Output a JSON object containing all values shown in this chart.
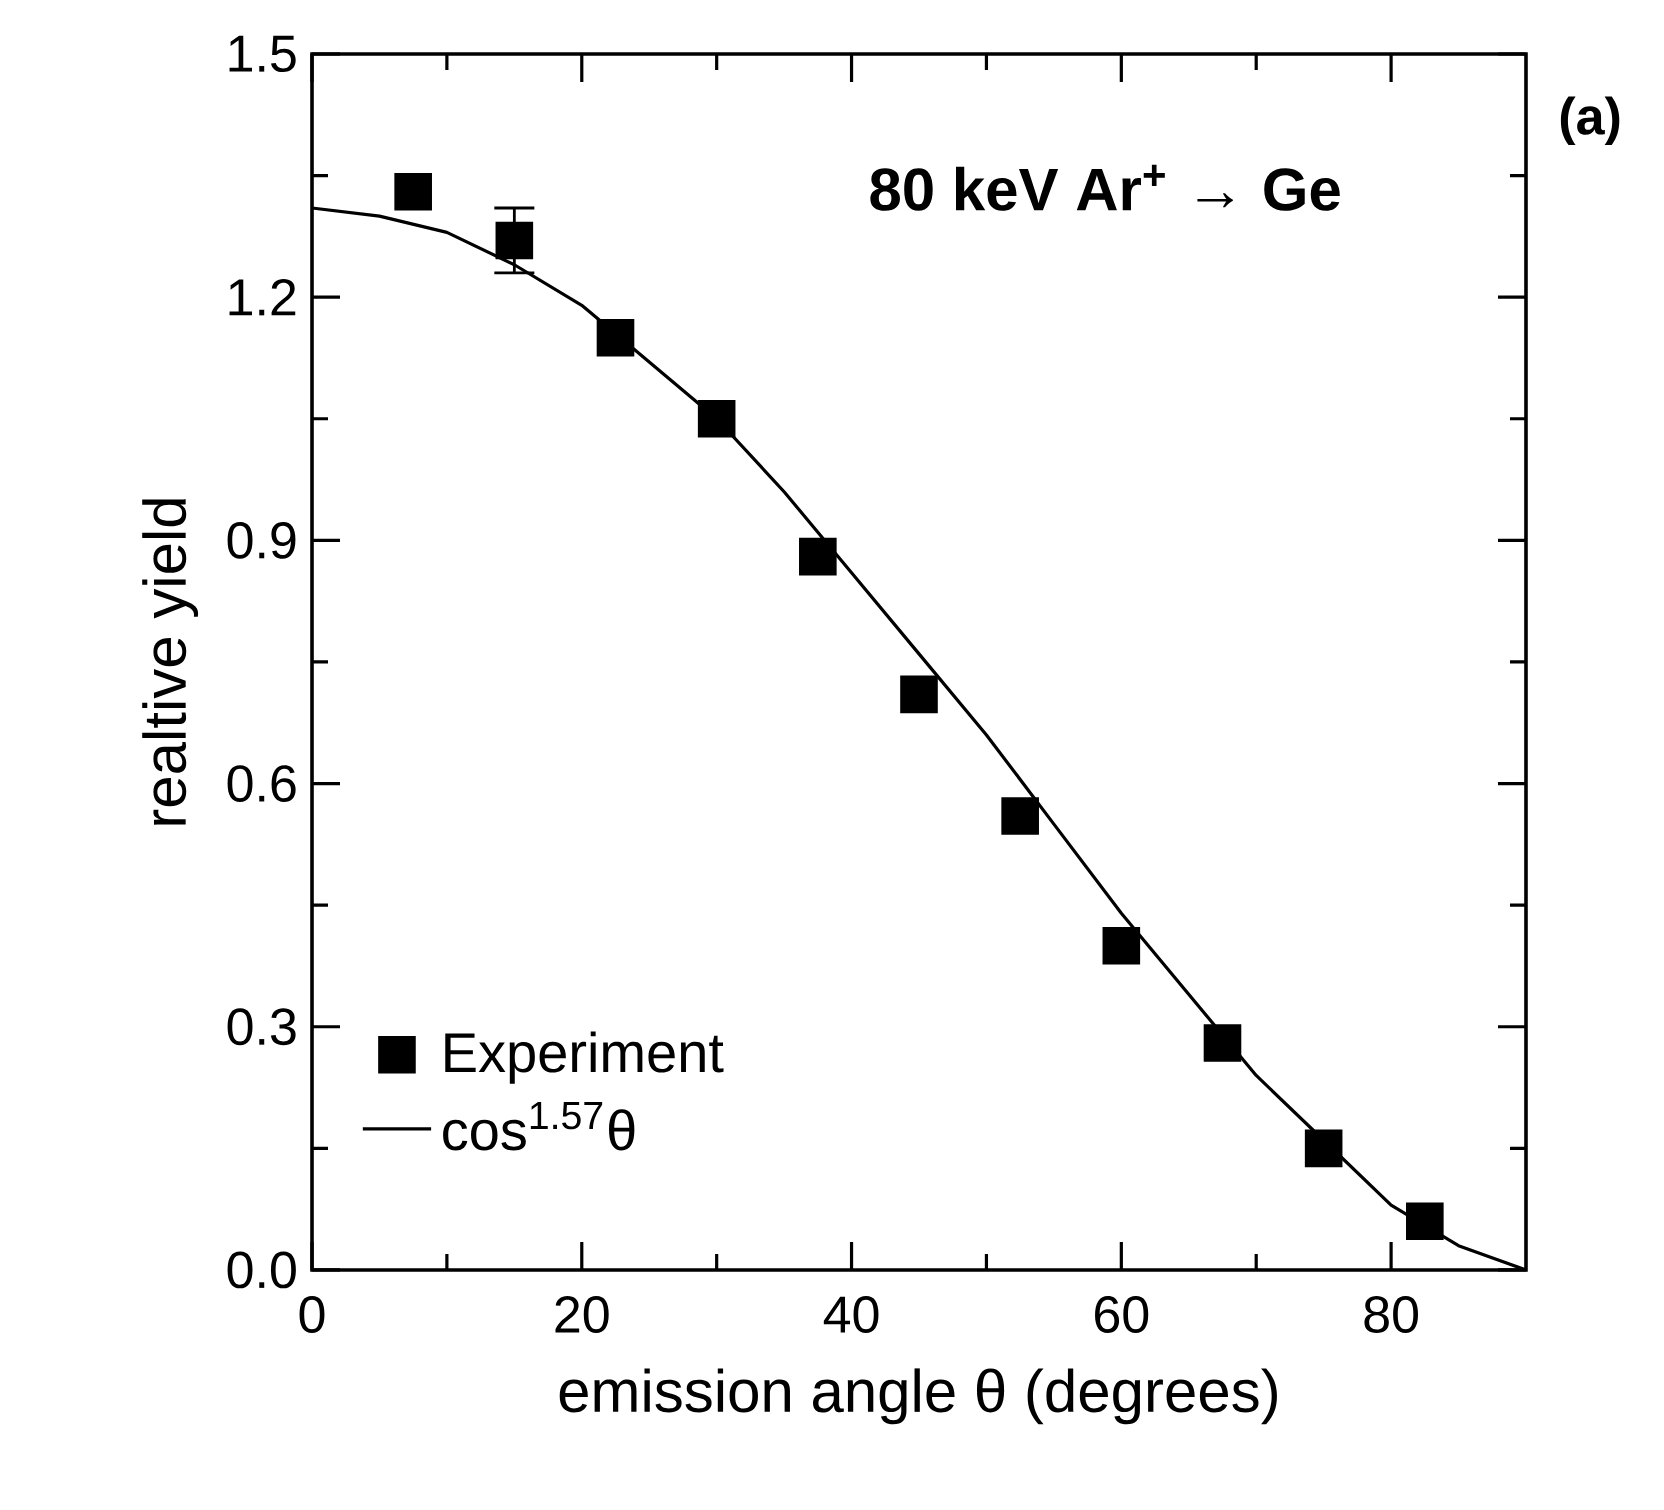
{
  "chart_data": {
    "type": "scatter",
    "xlabel": "emission angle θ (degrees)",
    "ylabel": "realtive yield",
    "annotations": [
      "80 keV Ar$^{+}$ → Ge",
      "(a)"
    ],
    "xlim": [
      0,
      90
    ],
    "ylim": [
      0,
      1.5
    ],
    "xticks": [
      0,
      20,
      40,
      60,
      80
    ],
    "yticks": [
      {
        "value": 0,
        "label": "0.0"
      },
      0.3,
      0.6,
      0.9,
      1.2,
      1.5
    ],
    "legend": "bottom left",
    "series": [
      {
        "name": "Experiment",
        "type": "scatter",
        "marker": "square",
        "color": "#000000",
        "x": [
          7.5,
          15,
          22.5,
          30,
          37.5,
          45,
          52.5,
          60,
          67.5,
          75,
          82.5
        ],
        "values": [
          1.33,
          1.27,
          1.15,
          1.05,
          0.88,
          0.71,
          0.56,
          0.4,
          0.28,
          0.15,
          0.06
        ],
        "errors": [
          null,
          [
            1.23,
            1.31
          ],
          null,
          null,
          null,
          null,
          null,
          null,
          null,
          null,
          null
        ]
      },
      {
        "name": "cos$^{1.57}$θ",
        "type": "line",
        "marker": "none",
        "color": "#000000",
        "x": [
          0,
          5,
          10,
          15,
          20,
          25,
          30,
          35,
          40,
          45,
          50,
          55,
          60,
          65,
          70,
          75,
          80,
          85,
          90
        ],
        "values": [
          1.31,
          1.3,
          1.28,
          1.24,
          1.19,
          1.12,
          1.05,
          0.96,
          0.86,
          0.76,
          0.66,
          0.55,
          0.44,
          0.34,
          0.24,
          0.16,
          0.08,
          0.03,
          0.0
        ]
      }
    ]
  }
}
